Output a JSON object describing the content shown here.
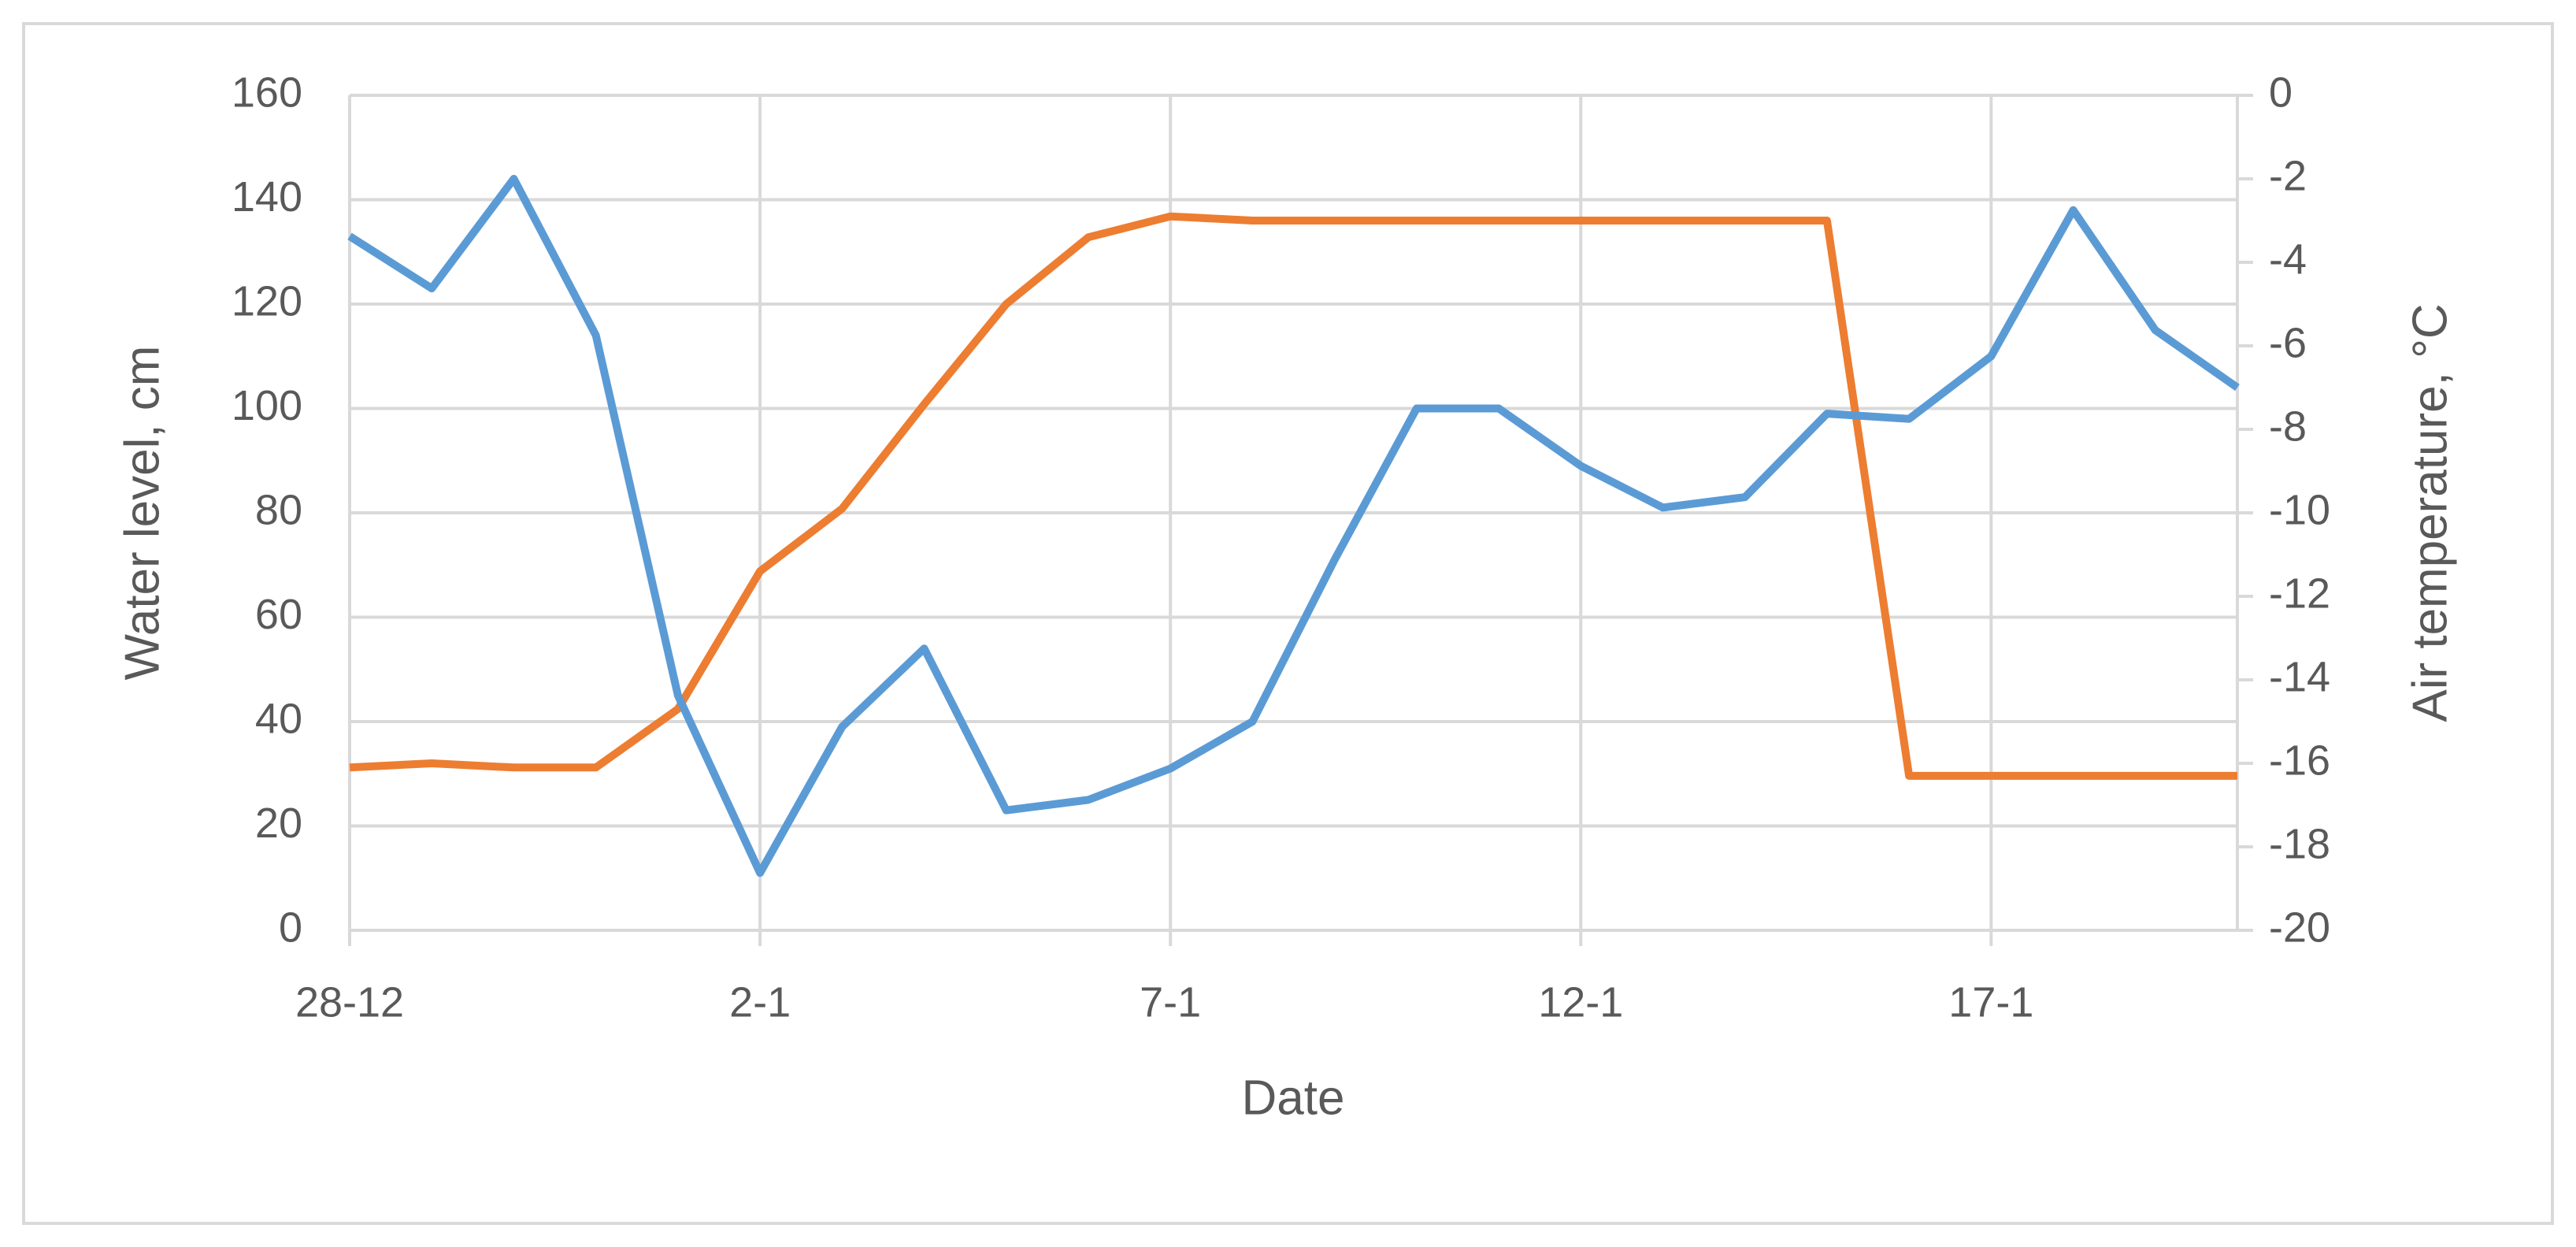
{
  "chart_data": {
    "type": "line",
    "x_label": "Date",
    "y_label": "Water level, cm",
    "y2_label": "Air temperature, °C",
    "categories": [
      "28-12",
      null,
      null,
      null,
      null,
      "2-1",
      null,
      null,
      null,
      null,
      "7-1",
      null,
      null,
      null,
      null,
      "12-1",
      null,
      null,
      null,
      null,
      "17-1",
      null,
      null,
      null
    ],
    "series": [
      {
        "name": "Water level",
        "color": "#5b9bd5",
        "values": [
          133,
          123,
          144,
          114,
          45,
          11,
          39,
          54,
          23,
          25,
          31,
          40,
          71,
          100,
          100,
          89,
          81,
          83,
          99,
          98,
          110,
          138,
          115,
          104
        ]
      },
      {
        "name": "Air temperature",
        "color": "#ed7d31",
        "axis": "y2",
        "values": [
          -16.1,
          -16.0,
          -16.1,
          -16.1,
          -14.7,
          -11.4,
          -9.9,
          -7.4,
          -5.0,
          -3.4,
          -2.9,
          -3.0,
          -3.0,
          -3.0,
          -3.0,
          -3.0,
          -3.0,
          -3.0,
          -3.0,
          -16.3,
          -16.3,
          -16.3,
          -16.3,
          -16.3
        ]
      }
    ],
    "ylim": [
      0,
      160
    ],
    "yticks": [
      0,
      20,
      40,
      60,
      80,
      100,
      120,
      140,
      160
    ],
    "y2lim": [
      -20,
      0
    ],
    "y2ticks": [
      -20,
      -18,
      -16,
      -14,
      -12,
      -10,
      -8,
      -6,
      -4,
      -2,
      0
    ],
    "grid": true
  }
}
